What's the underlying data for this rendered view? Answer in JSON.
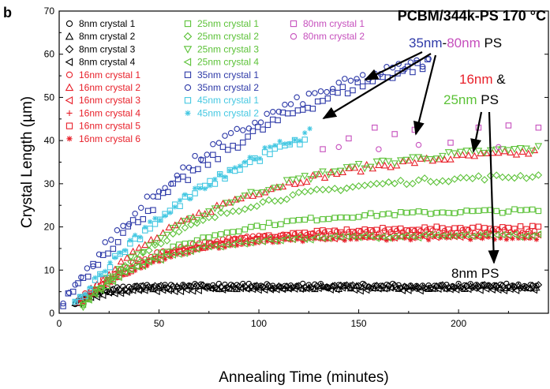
{
  "chart_data": {
    "type": "scatter",
    "panel_label": "b",
    "title": "PCBM/344k-PS 170 °C",
    "xlabel": "Annealing Time (minutes)",
    "ylabel": "Crystal Length (µm)",
    "xlim": [
      0,
      245
    ],
    "ylim": [
      0,
      70
    ],
    "xticks": [
      0,
      50,
      100,
      150,
      200
    ],
    "yticks": [
      0,
      10,
      20,
      30,
      40,
      50,
      60,
      70
    ],
    "grid": false,
    "legend_position": "top-left",
    "series": [
      {
        "name": "8nm crystal 1",
        "color": "#000000",
        "marker": "circle",
        "shape": "plateau",
        "y0": 2.5,
        "ymax": 6.5,
        "tau": 12,
        "t0": 8,
        "t1": 240,
        "step": 3
      },
      {
        "name": "8nm crystal 2",
        "color": "#000000",
        "marker": "triangle-up",
        "shape": "plateau",
        "y0": 2.5,
        "ymax": 6.0,
        "tau": 12,
        "t0": 8,
        "t1": 240,
        "step": 3
      },
      {
        "name": "8nm crystal 3",
        "color": "#000000",
        "marker": "diamond",
        "shape": "plateau",
        "y0": 2.5,
        "ymax": 6.2,
        "tau": 12,
        "t0": 9,
        "t1": 240,
        "step": 3
      },
      {
        "name": "8nm crystal 4",
        "color": "#000000",
        "marker": "triangle-left",
        "shape": "plateau",
        "y0": 2.5,
        "ymax": 5.5,
        "tau": 12,
        "t0": 10,
        "t1": 240,
        "step": 3
      },
      {
        "name": "16nm crystal 1",
        "color": "#e8202a",
        "marker": "circle",
        "shape": "plateau",
        "y0": 3,
        "ymax": 19,
        "tau": 35,
        "t0": 10,
        "t1": 240,
        "step": 3
      },
      {
        "name": "16nm crystal 2",
        "color": "#e8202a",
        "marker": "triangle-up",
        "shape": "plateau",
        "y0": 3,
        "ymax": 39,
        "tau": 75,
        "t0": 10,
        "t1": 240,
        "step": 3
      },
      {
        "name": "16nm crystal 3",
        "color": "#e8202a",
        "marker": "triangle-left",
        "shape": "plateau",
        "y0": 3,
        "ymax": 18,
        "tau": 35,
        "t0": 12,
        "t1": 240,
        "step": 3
      },
      {
        "name": "16nm crystal 4",
        "color": "#e8202a",
        "marker": "plus",
        "shape": "plateau",
        "y0": 3,
        "ymax": 18.5,
        "tau": 35,
        "t0": 12,
        "t1": 240,
        "step": 3
      },
      {
        "name": "16nm crystal 5",
        "color": "#e8202a",
        "marker": "square",
        "shape": "plateau",
        "y0": 3,
        "ymax": 20,
        "tau": 45,
        "t0": 12,
        "t1": 240,
        "step": 3
      },
      {
        "name": "16nm crystal 6",
        "color": "#e8202a",
        "marker": "asterisk",
        "shape": "plateau",
        "y0": 3,
        "ymax": 17.5,
        "tau": 35,
        "t0": 14,
        "t1": 240,
        "step": 3
      },
      {
        "name": "25nm crystal 1",
        "color": "#5cc238",
        "marker": "square",
        "shape": "plateau",
        "y0": 2,
        "ymax": 24,
        "tau": 50,
        "t0": 12,
        "t1": 240,
        "step": 3
      },
      {
        "name": "25nm crystal 2",
        "color": "#5cc238",
        "marker": "diamond",
        "shape": "plateau",
        "y0": 2,
        "ymax": 32.5,
        "tau": 60,
        "t0": 12,
        "t1": 240,
        "step": 3
      },
      {
        "name": "25nm crystal 3",
        "color": "#5cc238",
        "marker": "triangle-down",
        "shape": "plateau",
        "y0": 2,
        "ymax": 40,
        "tau": 75,
        "t0": 12,
        "t1": 240,
        "step": 3
      },
      {
        "name": "25nm crystal 4",
        "color": "#5cc238",
        "marker": "triangle-left",
        "shape": "plateau",
        "y0": 2,
        "ymax": 18,
        "tau": 35,
        "t0": 12,
        "t1": 240,
        "step": 3
      },
      {
        "name": "35nm crystal 1",
        "color": "#2e3aa8",
        "marker": "square",
        "shape": "plateau",
        "y0": 2.5,
        "ymax": 72,
        "tau": 115,
        "t0": 2,
        "t1": 185,
        "step": 2.5
      },
      {
        "name": "35nm crystal 2",
        "color": "#2e3aa8",
        "marker": "circle",
        "shape": "plateau",
        "y0": 2.5,
        "ymax": 68,
        "tau": 95,
        "t0": 2,
        "t1": 185,
        "step": 3
      },
      {
        "name": "45nm crystal 1",
        "color": "#45c8e2",
        "marker": "square",
        "shape": "plateau",
        "y0": 2,
        "ymax": 55,
        "tau": 90,
        "t0": 8,
        "t1": 125,
        "step": 2.5
      },
      {
        "name": "45nm crystal 2",
        "color": "#45c8e2",
        "marker": "asterisk",
        "shape": "plateau",
        "y0": 2,
        "ymax": 58,
        "tau": 95,
        "t0": 8,
        "t1": 126,
        "step": 2.5
      },
      {
        "name": "80nm crystal 1",
        "color": "#c64fbd",
        "marker": "square",
        "points": [
          [
            132,
            38
          ],
          [
            145,
            40.5
          ],
          [
            158,
            43
          ],
          [
            168,
            41.5
          ],
          [
            178,
            42.5
          ],
          [
            196,
            39.5
          ],
          [
            210,
            43
          ],
          [
            225,
            43.5
          ],
          [
            240,
            43
          ]
        ]
      },
      {
        "name": "80nm crystal 2",
        "color": "#c64fbd",
        "marker": "circle",
        "points": [
          [
            140,
            38.5
          ],
          [
            160,
            38
          ],
          [
            180,
            39
          ],
          [
            220,
            38.5
          ]
        ]
      }
    ],
    "annotations": [
      {
        "parts": [
          {
            "text": "35nm",
            "color": "#2e3aa8"
          },
          {
            "text": "-",
            "color": "#000000"
          },
          {
            "text": "80nm",
            "color": "#c64fbd"
          },
          {
            "text": " PS",
            "color": "#000000"
          }
        ]
      },
      {
        "parts": [
          {
            "text": "16nm",
            "color": "#e8202a"
          },
          {
            "text": " &",
            "color": "#000000"
          }
        ]
      },
      {
        "parts": [
          {
            "text": "25nm",
            "color": "#5cc238"
          },
          {
            "text": " PS",
            "color": "#000000"
          }
        ]
      },
      {
        "parts": [
          {
            "text": "8nm PS",
            "color": "#000000"
          }
        ]
      }
    ],
    "legend_columns": [
      [
        "8nm crystal 1",
        "8nm crystal 2",
        "8nm crystal 3",
        "8nm crystal 4",
        "16nm crystal 1",
        "16nm crystal 2",
        "16nm crystal 3",
        "16nm crystal 4",
        "16nm crystal 5",
        "16nm crystal 6"
      ],
      [
        "25nm crystal 1",
        "25nm crystal 2",
        "25nm crystal 3",
        "25nm crystal 4",
        "35nm crystal 1",
        "35nm crystal 2",
        "45nm crystal 1",
        "45nm crystal 2"
      ],
      [
        "80nm crystal 1",
        "80nm crystal 2"
      ]
    ]
  }
}
